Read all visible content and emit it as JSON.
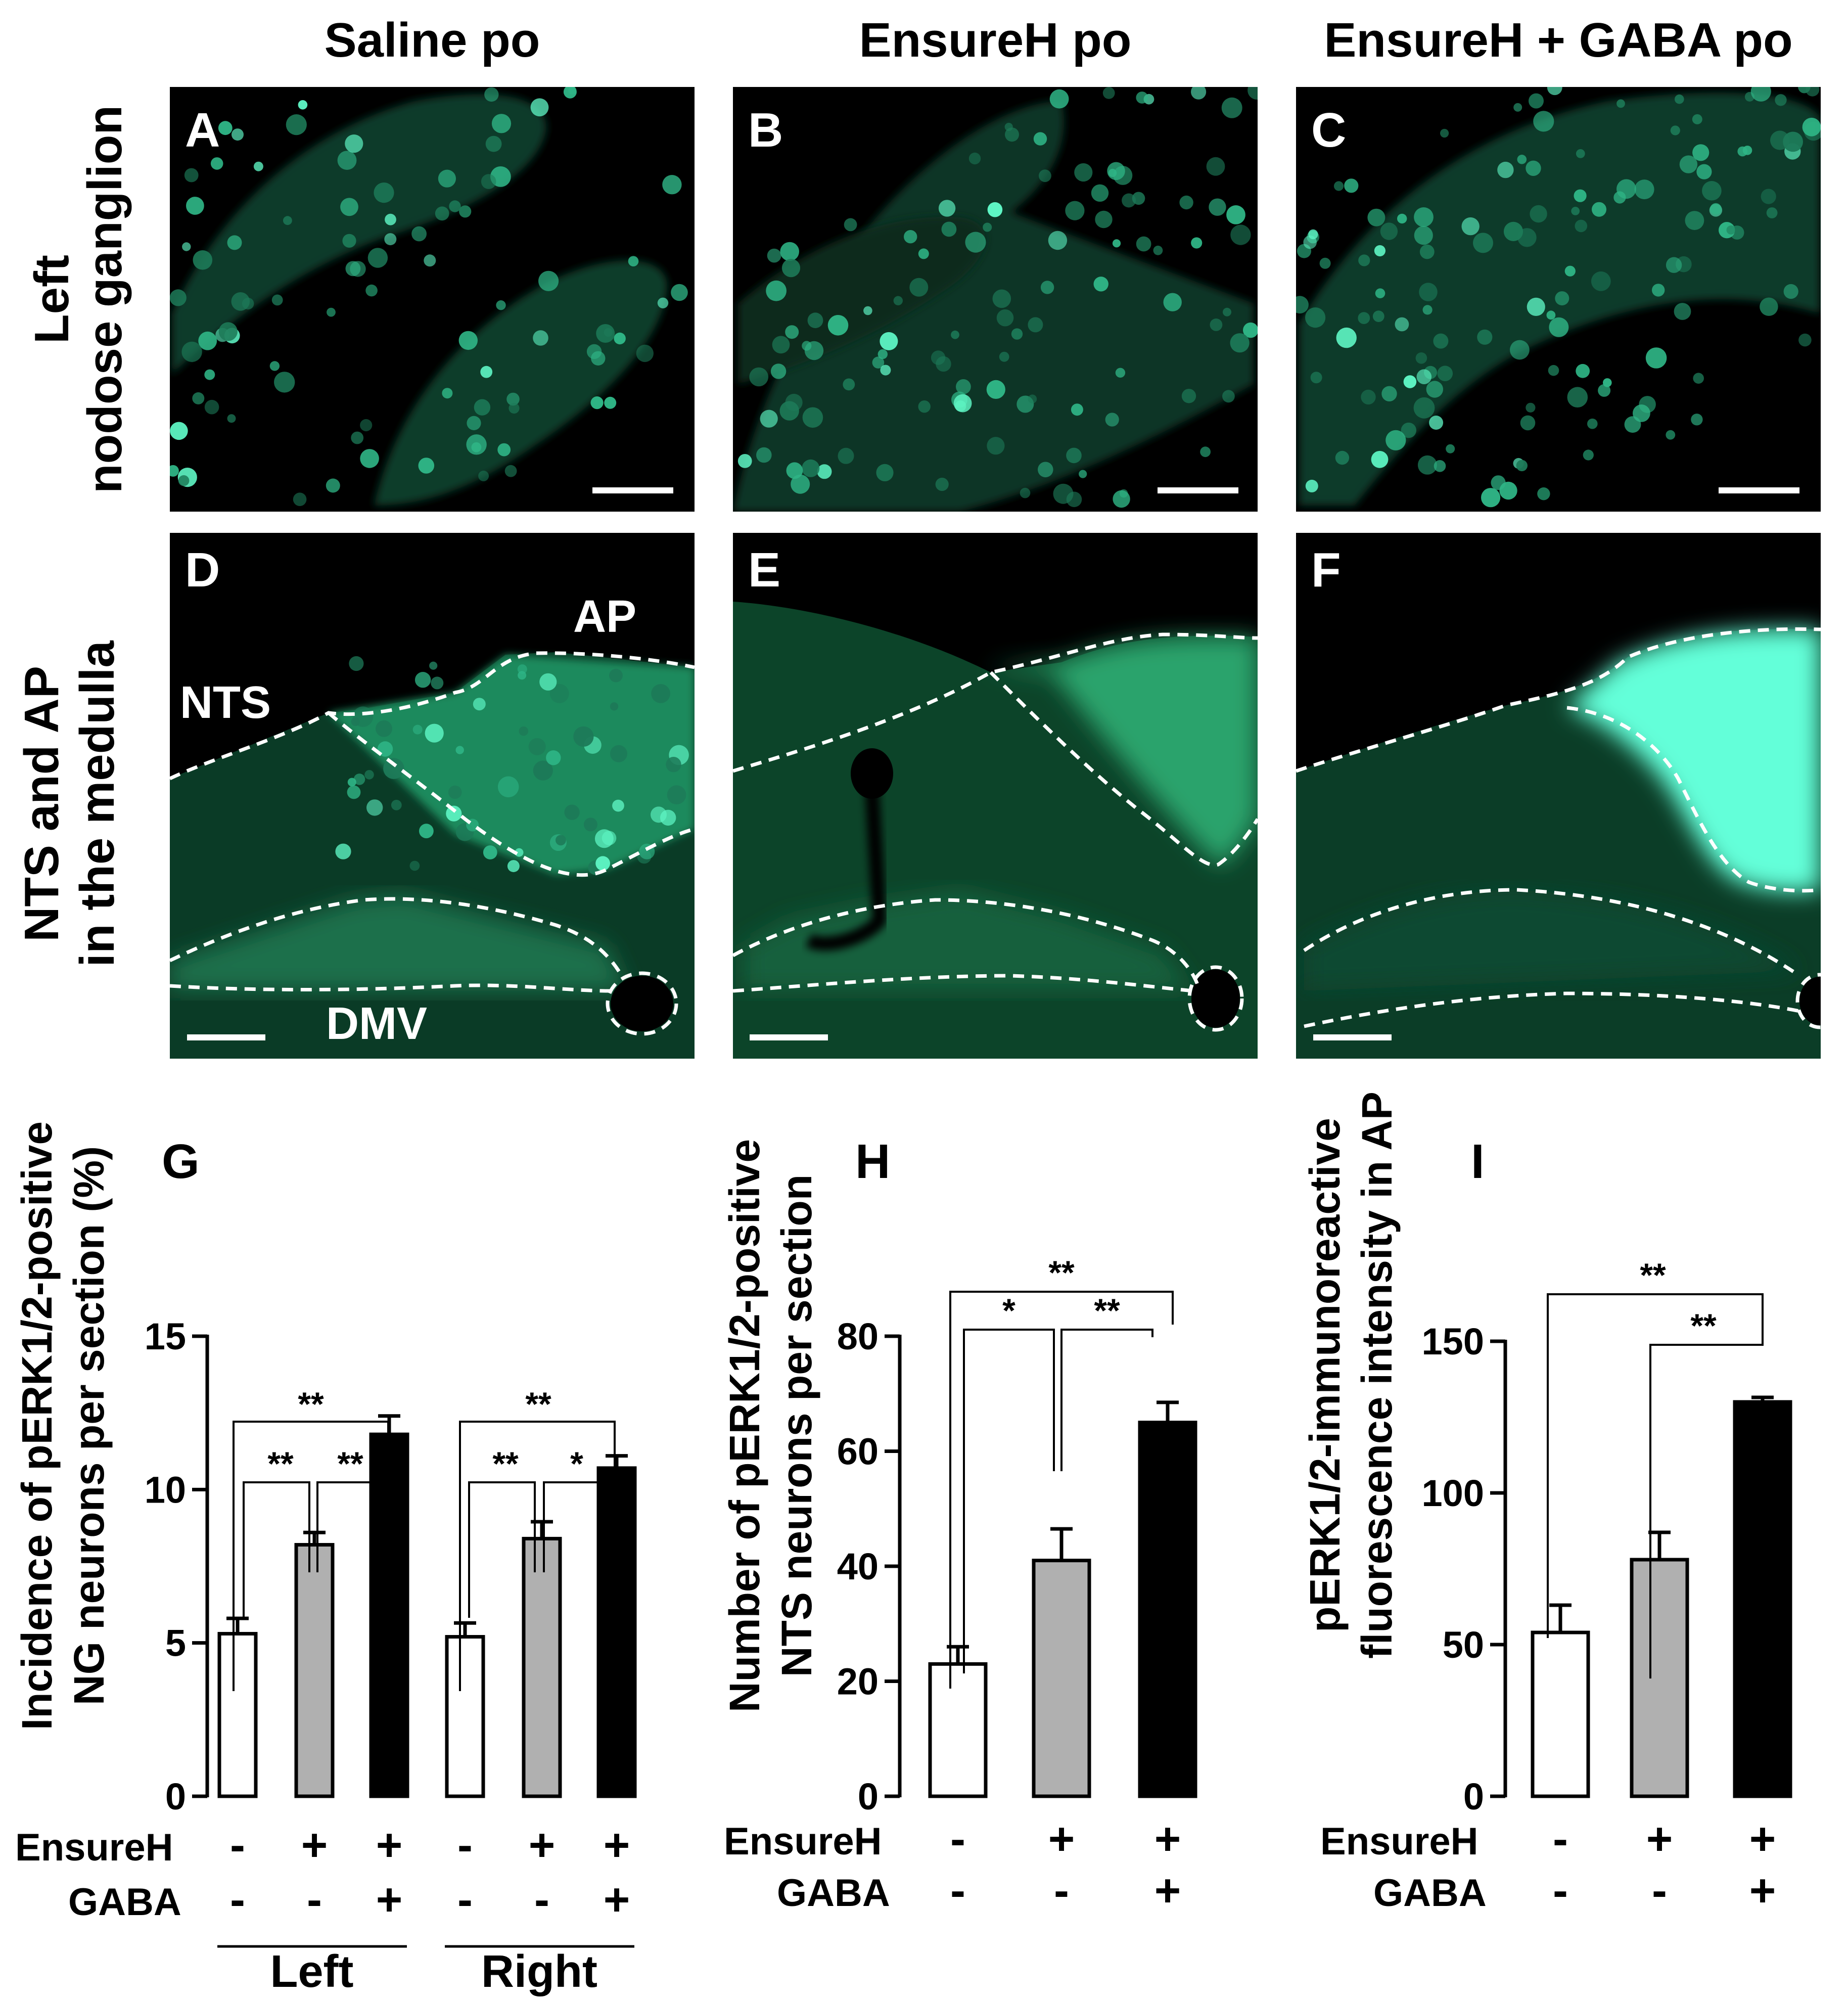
{
  "columns": [
    "Saline po",
    "EnsureH po",
    "EnsureH + GABA po"
  ],
  "rows": {
    "top": [
      "Left",
      "nodose ganglion"
    ],
    "bottom": [
      "NTS and AP",
      "in the medulla"
    ]
  },
  "panels": [
    "A",
    "B",
    "C",
    "D",
    "E",
    "F"
  ],
  "regions": {
    "nts": "NTS",
    "ap": "AP",
    "dmv": "DMV"
  },
  "colors": {
    "fluor_dim": "#08301f",
    "fluor": "#1f9e6d",
    "fluor_bright": "#5ef5c4",
    "ap_saturated": "#63ffd9",
    "gray_bar": "#b0b0b0",
    "black_bar": "#000000",
    "white_bar": "#ffffff"
  },
  "graphs": {
    "G": {
      "letter": "G",
      "ylabel": [
        "Incidence of pERK1/2-positive",
        "NG neurons per section (%)"
      ],
      "ticks": [
        "0",
        "5",
        "10",
        "15"
      ],
      "row_labels": [
        "EnsureH",
        "GABA"
      ],
      "ensure_signs": [
        "-",
        "+",
        "+",
        "-",
        "+",
        "+"
      ],
      "gaba_signs": [
        "-",
        "-",
        "+",
        "-",
        "-",
        "+"
      ],
      "groups": [
        "Left",
        "Right"
      ],
      "sig_top": [
        "**",
        "**"
      ],
      "sig_inner": [
        "**",
        "**",
        "**",
        "*"
      ]
    },
    "H": {
      "letter": "H",
      "ylabel": [
        "Number of pERK1/2-positive",
        "NTS neurons per section"
      ],
      "ticks": [
        "0",
        "20",
        "40",
        "60",
        "80"
      ],
      "row_labels": [
        "EnsureH",
        "GABA"
      ],
      "ensure_signs": [
        "-",
        "+",
        "+"
      ],
      "gaba_signs": [
        "-",
        "-",
        "+"
      ],
      "sig_top": "**",
      "sig_inner": [
        "*",
        "**"
      ]
    },
    "I": {
      "letter": "I",
      "ylabel": [
        "pERK1/2-immunoreactive",
        "fluorescence intensity in AP"
      ],
      "ticks": [
        "0",
        "50",
        "100",
        "150"
      ],
      "row_labels": [
        "EnsureH",
        "GABA"
      ],
      "ensure_signs": [
        "-",
        "+",
        "+"
      ],
      "gaba_signs": [
        "-",
        "-",
        "+"
      ],
      "sig_top": "**",
      "sig_inner": [
        "**"
      ]
    }
  },
  "chart_data": [
    {
      "type": "bar",
      "panel": "G",
      "title": "",
      "ylabel": "Incidence of pERK1/2-positive NG neurons per section (%)",
      "ylim": [
        0,
        15
      ],
      "groups": [
        "Left",
        "Right"
      ],
      "conditions": [
        "Saline",
        "EnsureH",
        "EnsureH + GABA"
      ],
      "series": [
        {
          "name": "Left",
          "values": [
            5.3,
            8.2,
            11.8
          ],
          "errors": [
            0.5,
            0.4,
            0.6
          ]
        },
        {
          "name": "Right",
          "values": [
            5.2,
            8.4,
            10.7
          ],
          "errors": [
            0.45,
            0.55,
            0.4
          ]
        }
      ]
    },
    {
      "type": "bar",
      "panel": "H",
      "title": "",
      "ylabel": "Number of pERK1/2-positive NTS neurons per section",
      "ylim": [
        0,
        80
      ],
      "categories": [
        "Saline",
        "EnsureH",
        "EnsureH + GABA"
      ],
      "values": [
        23,
        41,
        65
      ],
      "errors": [
        3,
        5.5,
        3.5
      ]
    },
    {
      "type": "bar",
      "panel": "I",
      "title": "",
      "ylabel": "pERK1/2-immunoreactive fluorescence intensity in AP",
      "ylim": [
        0,
        150
      ],
      "categories": [
        "Saline",
        "EnsureH",
        "EnsureH + GABA"
      ],
      "values": [
        54,
        78,
        130
      ],
      "errors": [
        9,
        9,
        1.5
      ]
    }
  ]
}
